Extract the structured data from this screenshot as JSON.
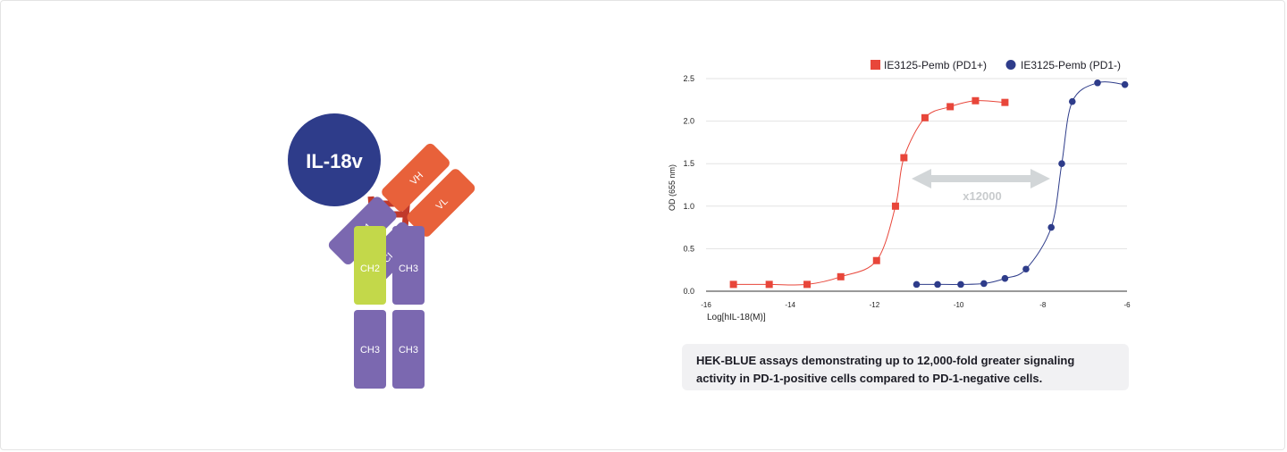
{
  "diagram": {
    "cytokine_label": "IL-18v",
    "domains": {
      "vh": "VH",
      "vl": "VL",
      "ch1": "CH1",
      "cl": "CL",
      "ch2": "CH2",
      "ch3_top_right": "CH3",
      "ch3_bottom_left": "CH3",
      "ch3_bottom_right": "CH3"
    },
    "colors": {
      "cytokine": "#2e3c8a",
      "heavy_variable": "#e8613a",
      "constant": "#7b68b0",
      "ch2": "#c3d84a",
      "hinge": "#c0392b"
    }
  },
  "chart_data": {
    "type": "scatter",
    "xlabel": "Log[hIL-18(M)]",
    "ylabel": "OD (655 nm)",
    "xlim": [
      -16,
      -6
    ],
    "ylim": [
      0,
      2.5
    ],
    "xticks": [
      -16,
      -14,
      -12,
      -10,
      -8,
      -6
    ],
    "yticks": [
      0,
      0.5,
      1.0,
      1.5,
      2.0,
      2.5
    ],
    "xtick_labels": [
      "-16",
      "-14",
      "-12",
      "-10",
      "-8",
      "-6"
    ],
    "ytick_labels": [
      "0.0",
      "0.5",
      "1.0",
      "1.5",
      "2.0",
      "2.5"
    ],
    "grid": "horizontal",
    "legend_position": "top-right",
    "annotation": "x12000",
    "series": [
      {
        "name": "IE3125-Pemb (PD1+)",
        "color": "#e8463a",
        "marker": "square",
        "x": [
          -15.35,
          -14.5,
          -13.6,
          -12.8,
          -11.95,
          -11.5,
          -11.3,
          -10.8,
          -10.2,
          -9.6,
          -8.9
        ],
        "y": [
          0.08,
          0.08,
          0.08,
          0.17,
          0.36,
          1.0,
          1.57,
          2.04,
          2.17,
          2.24,
          2.22
        ]
      },
      {
        "name": "IE3125-Pemb (PD1-)",
        "color": "#2e3c8a",
        "marker": "circle",
        "x": [
          -11.0,
          -10.5,
          -9.95,
          -9.4,
          -8.9,
          -8.4,
          -7.8,
          -7.55,
          -7.3,
          -6.7,
          -6.05
        ],
        "y": [
          0.08,
          0.08,
          0.08,
          0.09,
          0.15,
          0.26,
          0.75,
          1.5,
          2.23,
          2.45,
          2.43
        ]
      }
    ]
  },
  "caption": "HEK-BLUE assays demonstrating up to 12,000-fold greater signaling activity in PD-1-positive cells compared to PD-1-negative cells."
}
